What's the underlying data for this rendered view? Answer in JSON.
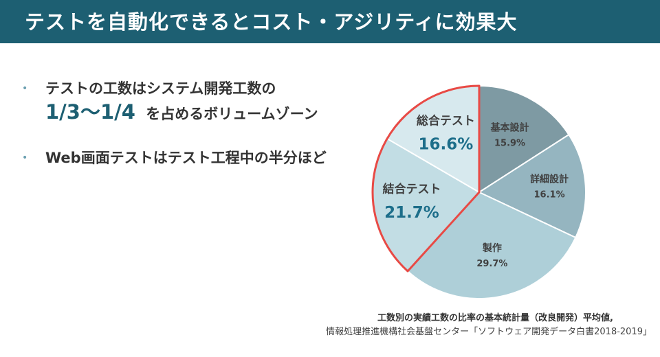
{
  "header": {
    "title": "テストを自動化できるとコスト・アジリティに効果大"
  },
  "bullets": [
    {
      "line1": "テストの工数はシステム開発工数の",
      "highlight": "1/3～1/4",
      "line2_suffix": "を占めるボリュームゾーン"
    },
    {
      "line1": "Web画面テストはテスト工程中の半分ほど"
    }
  ],
  "chart_data": {
    "type": "pie",
    "slices": [
      {
        "label": "基本設計",
        "value": 15.9,
        "value_label": "15.9%",
        "color": "#7e9aa3",
        "highlighted": false
      },
      {
        "label": "詳細設計",
        "value": 16.1,
        "value_label": "16.1%",
        "color": "#95b5c0",
        "highlighted": false
      },
      {
        "label": "製作",
        "value": 29.7,
        "value_label": "29.7%",
        "color": "#aecfd8",
        "highlighted": false
      },
      {
        "label": "結合テスト",
        "value": 21.7,
        "value_label": "21.7%",
        "color": "#c2dde4",
        "highlighted": true
      },
      {
        "label": "総合テスト",
        "value": 16.6,
        "value_label": "16.6%",
        "color": "#d7e9ee",
        "highlighted": true
      }
    ],
    "start": "12 o'clock, clockwise",
    "highlight_color": "#e84a45",
    "label_text_color": "#404040",
    "highlight_value_color": "#1d6e8a",
    "legend": "none"
  },
  "caption": {
    "line1": "工数別の実績工数の比率の基本統計量（改良開発）平均値,",
    "line2": "情報処理推進機構社会基盤センター「ソフトウェア開発データ白書2018-2019」"
  },
  "colors": {
    "header_bg": "#1d5f72",
    "bullet_dot": "#6a9fb0"
  }
}
